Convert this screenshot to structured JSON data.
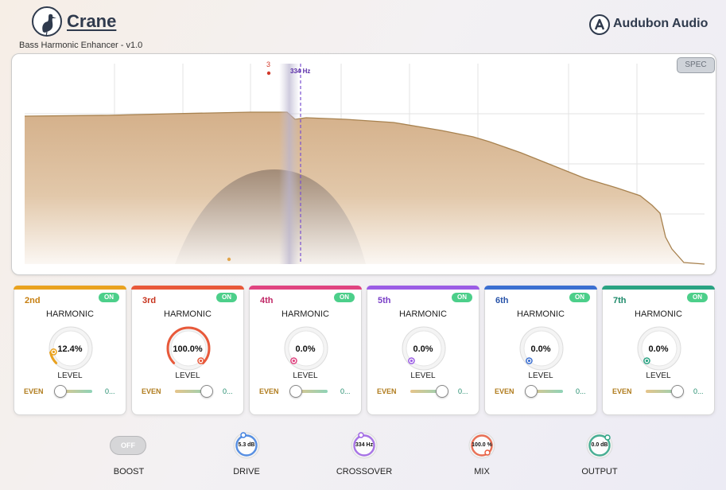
{
  "header": {
    "app_title": "Crane",
    "subtitle": "Bass Harmonic Enhancer  -  v1.0",
    "brand": "Audubon Audio"
  },
  "spectrum": {
    "spec_button": "SPEC",
    "band_number": "3",
    "crossover_label": "334 Hz",
    "colors": {
      "fill": "#d8b890",
      "line": "#a8824f",
      "cursor": "#7a4fd0",
      "marker": "#d23a2b"
    }
  },
  "harmonics": [
    {
      "name": "2nd",
      "on_label": "ON",
      "harmonic_label": "HARMONIC",
      "value": "12.4%",
      "level_label": "LEVEL",
      "even_label": "EVEN",
      "odd_value": "0...",
      "color": "#e9a21f",
      "name_color": "#c77f10",
      "knob_fraction": 0.124,
      "slider_fraction": 0.1
    },
    {
      "name": "3rd",
      "on_label": "ON",
      "harmonic_label": "HARMONIC",
      "value": "100.0%",
      "level_label": "LEVEL",
      "even_label": "EVEN",
      "odd_value": "0...",
      "color": "#e8593a",
      "name_color": "#c7331d",
      "knob_fraction": 1.0,
      "slider_fraction": 0.9
    },
    {
      "name": "4th",
      "on_label": "ON",
      "harmonic_label": "HARMONIC",
      "value": "0.0%",
      "level_label": "LEVEL",
      "even_label": "EVEN",
      "odd_value": "0...",
      "color": "#e04480",
      "name_color": "#c02665",
      "knob_fraction": 0.0,
      "slider_fraction": 0.1
    },
    {
      "name": "5th",
      "on_label": "ON",
      "harmonic_label": "HARMONIC",
      "value": "0.0%",
      "level_label": "LEVEL",
      "even_label": "EVEN",
      "odd_value": "0...",
      "color": "#9b5de5",
      "name_color": "#7a3fc7",
      "knob_fraction": 0.0,
      "slider_fraction": 0.9
    },
    {
      "name": "6th",
      "on_label": "ON",
      "harmonic_label": "HARMONIC",
      "value": "0.0%",
      "level_label": "LEVEL",
      "even_label": "EVEN",
      "odd_value": "0...",
      "color": "#3b6fd1",
      "name_color": "#2a55aa",
      "knob_fraction": 0.0,
      "slider_fraction": 0.1
    },
    {
      "name": "7th",
      "on_label": "ON",
      "harmonic_label": "HARMONIC",
      "value": "0.0%",
      "level_label": "LEVEL",
      "even_label": "EVEN",
      "odd_value": "0...",
      "color": "#2aa383",
      "name_color": "#1d8a6a",
      "knob_fraction": 0.0,
      "slider_fraction": 0.9
    }
  ],
  "controls": {
    "boost": {
      "label": "BOOST",
      "state": "OFF"
    },
    "drive": {
      "label": "DRIVE",
      "value": "5.3 dB",
      "color": "#3b7de0"
    },
    "crossover": {
      "label": "CROSSOVER",
      "value": "334 Hz",
      "color": "#9b5de5"
    },
    "mix": {
      "label": "MIX",
      "value": "100.0 %",
      "color": "#e8593a"
    },
    "output": {
      "label": "OUTPUT",
      "value": "0.0 dB",
      "color": "#2aa383"
    }
  }
}
